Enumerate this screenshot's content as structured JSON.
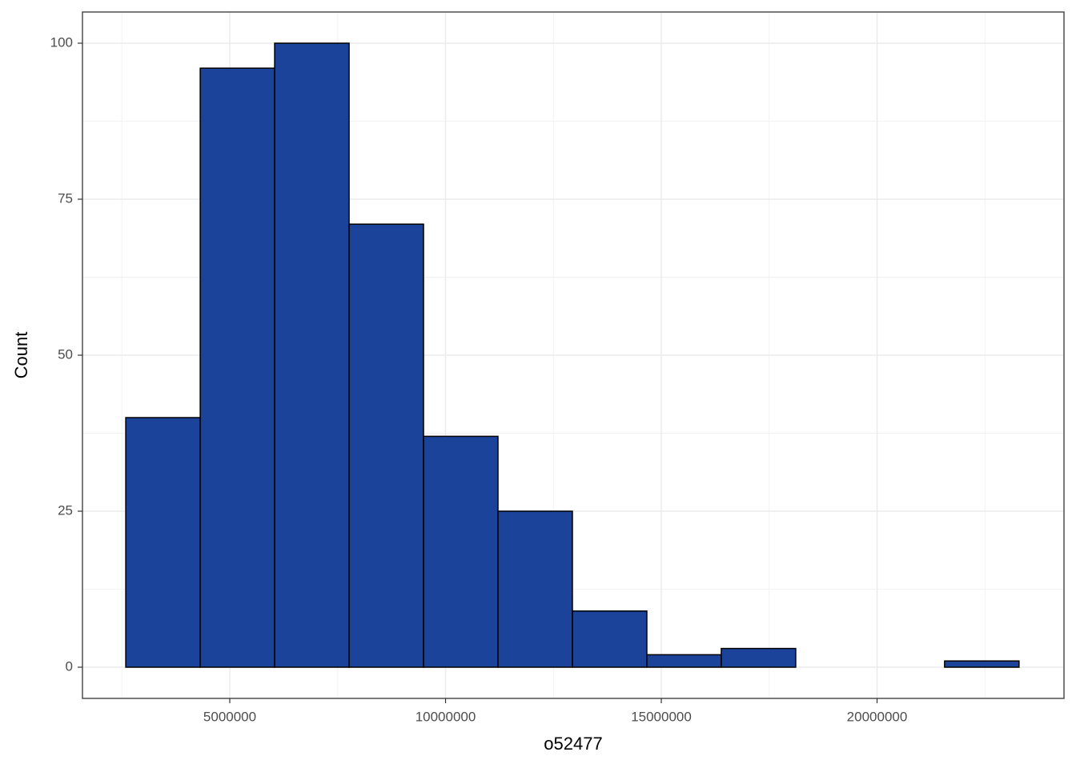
{
  "chart_data": {
    "type": "histogram",
    "x_label": "o52477",
    "y_label": "Count",
    "bins": [
      2590000,
      4315000,
      6040000,
      7765000,
      9490000,
      11215000,
      12940000,
      14665000,
      16390000,
      18115000,
      19840000,
      21565000,
      23290000
    ],
    "counts": [
      40,
      96,
      100,
      71,
      37,
      25,
      9,
      2,
      3,
      0,
      0,
      1
    ],
    "color": "#1a4399",
    "xlim": [
      1586000,
      24332000
    ],
    "xticks": [
      5000000,
      10000000,
      15000000,
      20000000
    ],
    "ylim": [
      -5,
      105
    ],
    "yticks": [
      0,
      25,
      50,
      75,
      100
    ],
    "grid": true
  }
}
